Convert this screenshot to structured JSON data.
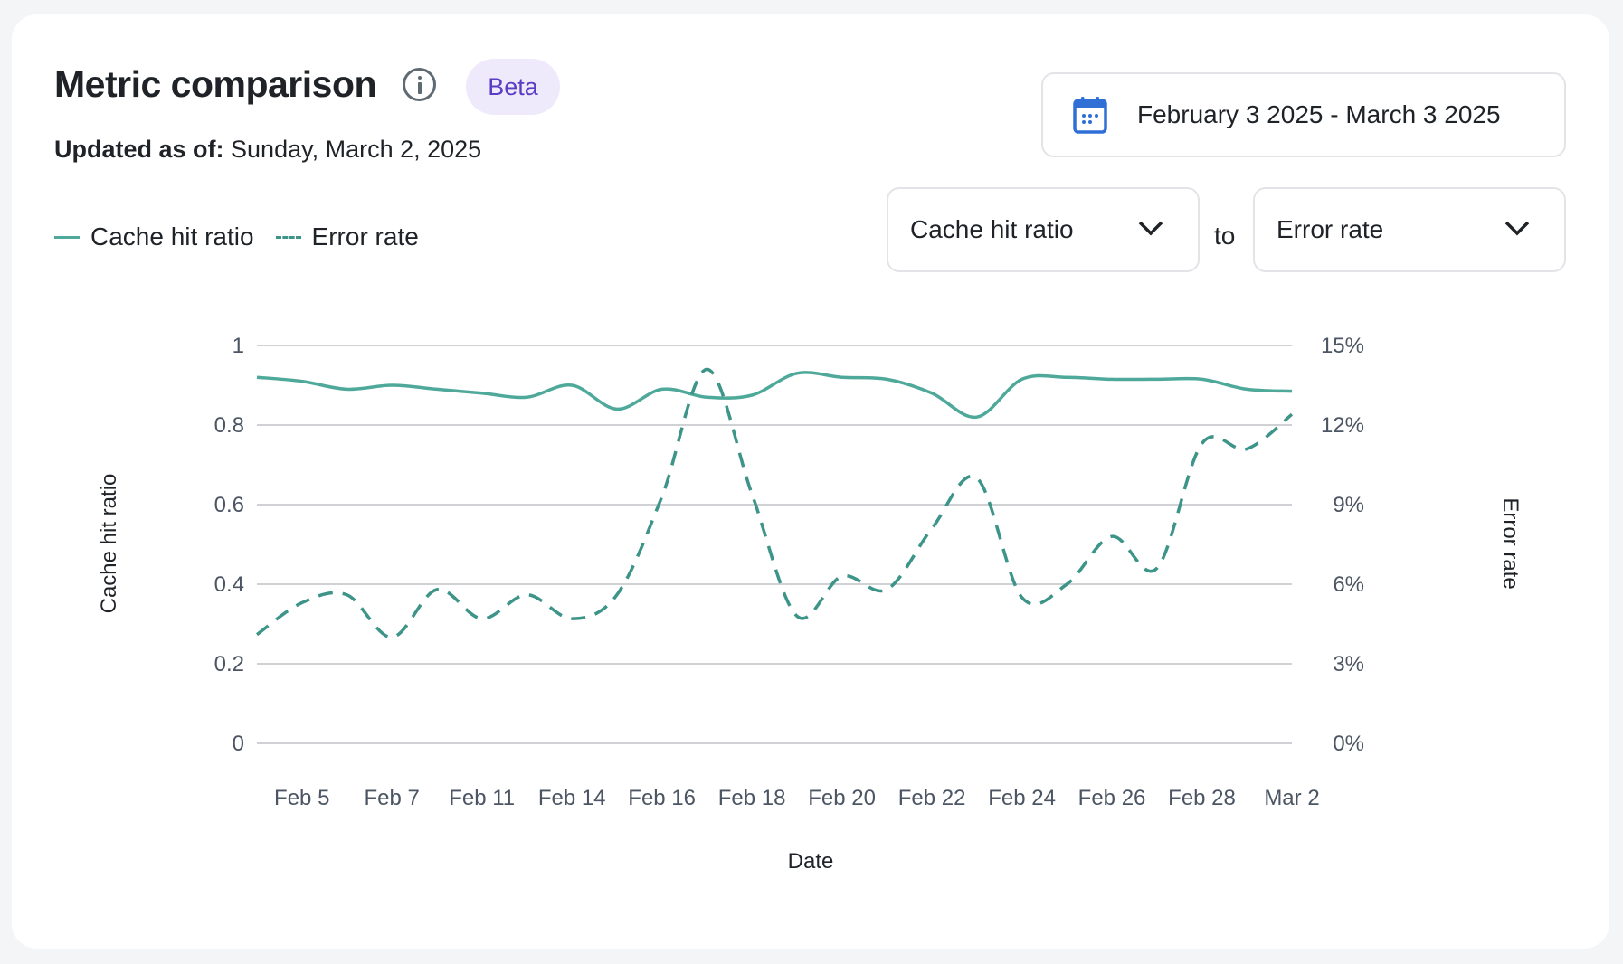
{
  "header": {
    "title": "Metric comparison",
    "badge": "Beta",
    "updated_label": "Updated as of:",
    "updated_value": "Sunday, March 2, 2025"
  },
  "date_range": {
    "label": "February 3 2025 - March 3 2025",
    "icon": "calendar-icon",
    "icon_color": "#2f6fd6"
  },
  "selectors": {
    "left": "Cache hit ratio",
    "connector": "to",
    "right": "Error rate"
  },
  "legend": [
    {
      "label": "Cache hit ratio",
      "style": "solid"
    },
    {
      "label": "Error rate",
      "style": "dashed"
    }
  ],
  "chart_data": {
    "type": "line",
    "xlabel": "Date",
    "categories": [
      "",
      "Feb 5",
      "",
      "Feb 7",
      "",
      "Feb 11",
      "",
      "Feb 14",
      "",
      "Feb 16",
      "",
      "Feb 18",
      "",
      "Feb 20",
      "",
      "Feb 22",
      "",
      "Feb 24",
      "",
      "Feb 26",
      "",
      "Feb 28",
      "",
      "Mar 2"
    ],
    "x_tick_labels": [
      "Feb 5",
      "Feb 7",
      "Feb 11",
      "Feb 14",
      "Feb 16",
      "Feb 18",
      "Feb 20",
      "Feb 22",
      "Feb 24",
      "Feb 26",
      "Feb 28",
      "Mar 2"
    ],
    "y_left": {
      "label": "Cache hit ratio",
      "range": [
        0,
        1
      ],
      "ticks": [
        "0",
        "0.2",
        "0.4",
        "0.6",
        "0.8",
        "1"
      ]
    },
    "y_right": {
      "label": "Error rate",
      "range": [
        0,
        15
      ],
      "unit": "%",
      "ticks": [
        "0%",
        "3%",
        "6%",
        "9%",
        "12%",
        "15%"
      ]
    },
    "grid": true,
    "legend_placement": "top-left",
    "series": [
      {
        "name": "Cache hit ratio",
        "axis": "left",
        "style": "solid",
        "color": "#4fa99a",
        "values": [
          0.92,
          0.91,
          0.89,
          0.9,
          0.89,
          0.88,
          0.87,
          0.9,
          0.84,
          0.89,
          0.87,
          0.875,
          0.93,
          0.92,
          0.915,
          0.88,
          0.82,
          0.915,
          0.92,
          0.915,
          0.915,
          0.915,
          0.89,
          0.885
        ]
      },
      {
        "name": "Error rate",
        "axis": "right",
        "style": "dashed",
        "color": "#3d9488",
        "values": [
          4.1,
          5.3,
          5.6,
          4.0,
          5.8,
          4.7,
          5.6,
          4.7,
          5.6,
          9.3,
          14.1,
          9.4,
          4.8,
          6.3,
          5.8,
          8.1,
          10.0,
          5.5,
          6.0,
          7.8,
          6.6,
          11.3,
          11.1,
          12.4
        ]
      }
    ]
  }
}
